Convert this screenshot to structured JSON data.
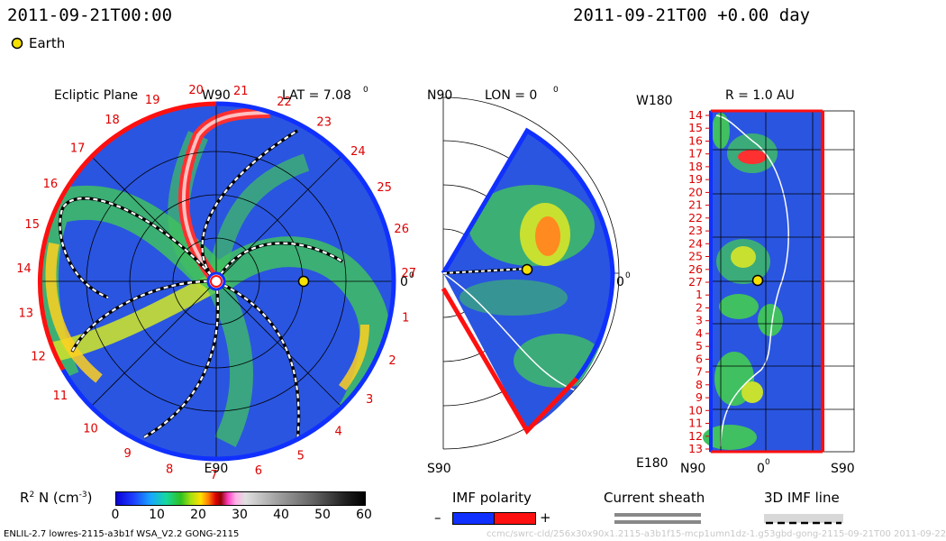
{
  "header": {
    "left_timestamp": "2011-09-21T00:00",
    "right_timestamp": "2011-09-21T00 +0.00 day"
  },
  "legend": {
    "earth_label": "Earth"
  },
  "panels": {
    "ecliptic": {
      "title": "Ecliptic Plane",
      "top_label": "W90",
      "bottom_label": "E90",
      "right_label": "0",
      "lat_label": "LAT = 7.08",
      "deg": "0",
      "sectors": [
        "20",
        "21",
        "22",
        "23",
        "24",
        "25",
        "26",
        "27",
        "1",
        "2",
        "3",
        "4",
        "5",
        "6",
        "7",
        "8",
        "9",
        "10",
        "11",
        "12",
        "13",
        "14",
        "15",
        "16",
        "17",
        "18",
        "19"
      ]
    },
    "meridional": {
      "top_label": "N90",
      "lon_label": "LON = 0",
      "deg": "0",
      "right_label": "0",
      "bottom_label": "S90"
    },
    "radial": {
      "top_label": "W180",
      "r_label": "R = 1.0 AU",
      "bottom_label": "E180",
      "bottom_left": "N90",
      "bottom_mid": "0",
      "bottom_right": "S90",
      "rows": [
        "14",
        "15",
        "16",
        "17",
        "18",
        "19",
        "20",
        "21",
        "22",
        "23",
        "24",
        "25",
        "26",
        "27",
        "1",
        "2",
        "3",
        "4",
        "5",
        "6",
        "7",
        "8",
        "9",
        "10",
        "11",
        "12",
        "13"
      ]
    }
  },
  "colorbar": {
    "label": "R",
    "label_sup": "2",
    "label_rest": " N (cm",
    "label_unit_sup": "-3",
    "label_close": ")",
    "ticks": [
      "0",
      "10",
      "20",
      "30",
      "40",
      "50",
      "60"
    ],
    "min": 0,
    "max": 60
  },
  "keys": {
    "imf_title": "IMF polarity",
    "imf_minus": "–",
    "imf_plus": "+",
    "sheath_title": "Current sheath",
    "line_title": "3D IMF line"
  },
  "footer": {
    "left": "ENLIL-2.7 lowres-2115-a3b1f WSA_V2.2 GONG-2115",
    "right": "ccmc/swrc-cld/256x30x90x1.2115-a3b1f15-mcp1umn1dz-1.g53gbd-gong-2115-09-21T00   2011-09-22"
  },
  "colors": {
    "pos": "#ff1010",
    "neg": "#1030ff",
    "bg_blue": "#2a55e0"
  }
}
